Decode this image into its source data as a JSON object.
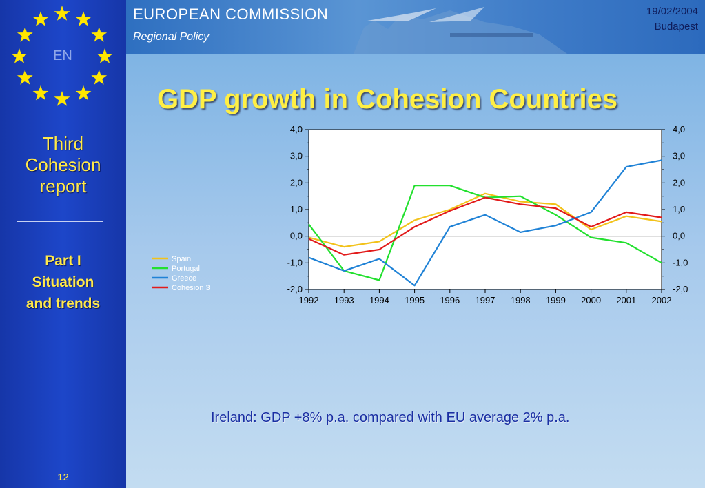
{
  "header": {
    "org": "EUROPEAN COMMISSION",
    "dept": "Regional Policy",
    "date": "19/02/2004",
    "place": "Budapest"
  },
  "sidebar": {
    "lang": "EN",
    "title_lines": [
      "Third",
      "Cohesion",
      "report"
    ],
    "part_lines": [
      "Part I",
      "Situation",
      "and trends"
    ],
    "page_number": "12"
  },
  "title": "GDP growth in Cohesion Countries",
  "note": "Ireland: GDP +8% p.a. compared with EU average 2% p.a.",
  "colors": {
    "Spain": "#f2c21a",
    "Portugal": "#22e02e",
    "Greece": "#1f82d6",
    "Cohesion 3": "#e21a1a"
  },
  "chart_data": {
    "type": "line",
    "x": [
      "1992",
      "1993",
      "1994",
      "1995",
      "1996",
      "1997",
      "1998",
      "1999",
      "2000",
      "2001",
      "2002"
    ],
    "ylim": [
      -2.0,
      4.0
    ],
    "yticks": [
      "4,0",
      "3,0",
      "2,0",
      "1,0",
      "0,0",
      "-1,0",
      "-2,0"
    ],
    "legend_position": "left",
    "series": [
      {
        "name": "Spain",
        "values": [
          -0.05,
          -0.4,
          -0.2,
          0.6,
          1.0,
          1.6,
          1.3,
          1.2,
          0.25,
          0.75,
          0.55
        ]
      },
      {
        "name": "Portugal",
        "values": [
          0.45,
          -1.3,
          -1.65,
          1.9,
          1.9,
          1.45,
          1.5,
          0.8,
          -0.05,
          -0.25,
          -1.0
        ]
      },
      {
        "name": "Greece",
        "values": [
          -0.8,
          -1.3,
          -0.85,
          -1.85,
          0.35,
          0.8,
          0.15,
          0.4,
          0.9,
          2.6,
          2.85
        ]
      },
      {
        "name": "Cohesion 3",
        "values": [
          -0.1,
          -0.7,
          -0.5,
          0.35,
          0.95,
          1.45,
          1.2,
          1.05,
          0.35,
          0.9,
          0.7
        ]
      }
    ]
  }
}
